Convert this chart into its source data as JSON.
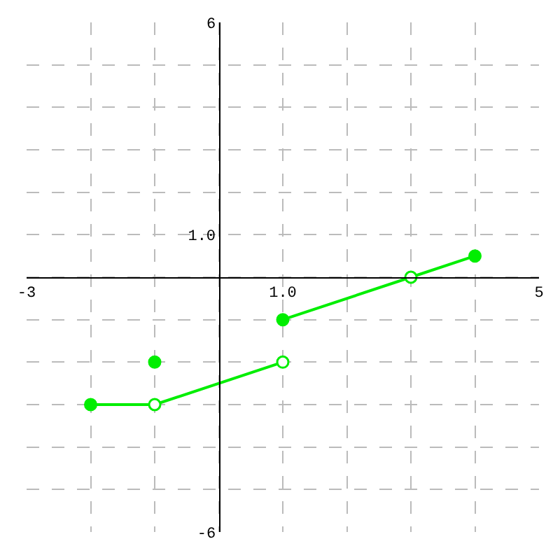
{
  "chart_data": {
    "type": "line",
    "xlim": [
      -3,
      5
    ],
    "ylim": [
      -6,
      6
    ],
    "xticks": [
      {
        "value": -3,
        "label": "-3"
      },
      {
        "value": -2,
        "label": null
      },
      {
        "value": -1,
        "label": null
      },
      {
        "value": 0,
        "label": null
      },
      {
        "value": 1,
        "label": "1.0"
      },
      {
        "value": 2,
        "label": null
      },
      {
        "value": 3,
        "label": null
      },
      {
        "value": 4,
        "label": null
      },
      {
        "value": 5,
        "label": "5"
      }
    ],
    "yticks": [
      {
        "value": -6,
        "label": "-6"
      },
      {
        "value": -5,
        "label": null
      },
      {
        "value": -4,
        "label": null
      },
      {
        "value": -3,
        "label": null
      },
      {
        "value": -2,
        "label": null
      },
      {
        "value": -1,
        "label": null
      },
      {
        "value": 0,
        "label": null
      },
      {
        "value": 1,
        "label": "1.0"
      },
      {
        "value": 2,
        "label": null
      },
      {
        "value": 3,
        "label": null
      },
      {
        "value": 4,
        "label": null
      },
      {
        "value": 5,
        "label": null
      },
      {
        "value": 6,
        "label": "6"
      }
    ],
    "grid": true,
    "marker": "none",
    "series": [
      {
        "color": "#00ee00",
        "x": [
          -2,
          -1,
          1
        ],
        "values": [
          -3,
          -3,
          -2
        ]
      },
      {
        "color": "#00ee00",
        "x": [
          1,
          3,
          4
        ],
        "values": [
          -1,
          0,
          0.5
        ]
      },
      {
        "type": "scatter",
        "marker": "circle",
        "color": "#00ee00",
        "x": [
          -2,
          -1,
          1,
          4
        ],
        "values": [
          -3,
          -2,
          -1,
          0.5
        ]
      },
      {
        "type": "scatter",
        "marker": "circle",
        "color": "#ffffff",
        "x": [
          -1,
          1,
          3
        ],
        "values": [
          -3,
          -2,
          0
        ]
      }
    ]
  }
}
